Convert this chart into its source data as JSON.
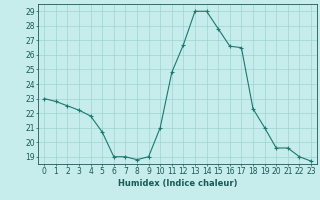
{
  "x": [
    0,
    1,
    2,
    3,
    4,
    5,
    6,
    7,
    8,
    9,
    10,
    11,
    12,
    13,
    14,
    15,
    16,
    17,
    18,
    19,
    20,
    21,
    22,
    23
  ],
  "y": [
    23.0,
    22.8,
    22.5,
    22.2,
    21.8,
    20.7,
    19.0,
    19.0,
    18.8,
    19.0,
    21.0,
    24.8,
    26.7,
    29.0,
    29.0,
    27.8,
    26.6,
    26.5,
    22.3,
    21.0,
    19.6,
    19.6,
    19.0,
    18.7
  ],
  "line_color": "#1a7a6e",
  "marker": "+",
  "marker_size": 3,
  "linewidth": 0.8,
  "bg_color": "#c6eceb",
  "grid_color": "#9dd4d0",
  "tick_color": "#1a5a56",
  "xlabel": "Humidex (Indice chaleur)",
  "xlabel_fontsize": 6,
  "tick_fontsize": 5.5,
  "ylim": [
    18.5,
    29.5
  ],
  "yticks": [
    19,
    20,
    21,
    22,
    23,
    24,
    25,
    26,
    27,
    28,
    29
  ],
  "xlim": [
    -0.5,
    23.5
  ],
  "xticks": [
    0,
    1,
    2,
    3,
    4,
    5,
    6,
    7,
    8,
    9,
    10,
    11,
    12,
    13,
    14,
    15,
    16,
    17,
    18,
    19,
    20,
    21,
    22,
    23
  ]
}
